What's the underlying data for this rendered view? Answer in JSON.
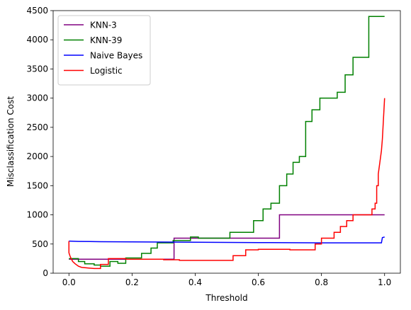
{
  "chart_data": {
    "type": "line",
    "title": "",
    "xlabel": "Threshold",
    "ylabel": "Misclassification Cost",
    "xlim": [
      -0.05,
      1.05
    ],
    "ylim": [
      0,
      4500
    ],
    "xticks": [
      0.0,
      0.2,
      0.4,
      0.6,
      0.8,
      1.0
    ],
    "xtick_labels": [
      "0.0",
      "0.2",
      "0.4",
      "0.6",
      "0.8",
      "1.0"
    ],
    "yticks": [
      0,
      500,
      1000,
      1500,
      2000,
      2500,
      3000,
      3500,
      4000,
      4500
    ],
    "ytick_labels": [
      "0",
      "500",
      "1000",
      "1500",
      "2000",
      "2500",
      "3000",
      "3500",
      "4000",
      "4500"
    ],
    "grid": false,
    "legend_position": "upper-left",
    "series": [
      {
        "name": "KNN-3",
        "color": "#800080",
        "step": true,
        "points": [
          [
            0.0,
            240
          ],
          [
            0.333,
            240
          ],
          [
            0.333,
            600
          ],
          [
            0.667,
            600
          ],
          [
            0.667,
            1000
          ],
          [
            1.0,
            1000
          ]
        ]
      },
      {
        "name": "KNN-39",
        "color": "#008000",
        "step": true,
        "points": [
          [
            0.0,
            250
          ],
          [
            0.03,
            250
          ],
          [
            0.03,
            200
          ],
          [
            0.05,
            200
          ],
          [
            0.05,
            160
          ],
          [
            0.08,
            160
          ],
          [
            0.08,
            140
          ],
          [
            0.1,
            140
          ],
          [
            0.1,
            120
          ],
          [
            0.13,
            120
          ],
          [
            0.13,
            200
          ],
          [
            0.155,
            200
          ],
          [
            0.155,
            170
          ],
          [
            0.18,
            170
          ],
          [
            0.18,
            260
          ],
          [
            0.23,
            260
          ],
          [
            0.23,
            340
          ],
          [
            0.26,
            340
          ],
          [
            0.26,
            430
          ],
          [
            0.28,
            430
          ],
          [
            0.28,
            520
          ],
          [
            0.33,
            520
          ],
          [
            0.33,
            560
          ],
          [
            0.385,
            560
          ],
          [
            0.385,
            620
          ],
          [
            0.41,
            620
          ],
          [
            0.41,
            600
          ],
          [
            0.51,
            600
          ],
          [
            0.51,
            700
          ],
          [
            0.585,
            700
          ],
          [
            0.585,
            900
          ],
          [
            0.615,
            900
          ],
          [
            0.615,
            1100
          ],
          [
            0.64,
            1100
          ],
          [
            0.64,
            1200
          ],
          [
            0.667,
            1200
          ],
          [
            0.667,
            1500
          ],
          [
            0.69,
            1500
          ],
          [
            0.69,
            1700
          ],
          [
            0.71,
            1700
          ],
          [
            0.71,
            1900
          ],
          [
            0.73,
            1900
          ],
          [
            0.73,
            2000
          ],
          [
            0.75,
            2000
          ],
          [
            0.75,
            2600
          ],
          [
            0.77,
            2600
          ],
          [
            0.77,
            2800
          ],
          [
            0.795,
            2800
          ],
          [
            0.795,
            3000
          ],
          [
            0.85,
            3000
          ],
          [
            0.85,
            3100
          ],
          [
            0.875,
            3100
          ],
          [
            0.875,
            3400
          ],
          [
            0.9,
            3400
          ],
          [
            0.9,
            3700
          ],
          [
            0.95,
            3700
          ],
          [
            0.95,
            4400
          ],
          [
            1.0,
            4400
          ]
        ]
      },
      {
        "name": "Naive Bayes",
        "color": "#0000ff",
        "step": true,
        "points": [
          [
            0.0,
            550
          ],
          [
            0.03,
            545
          ],
          [
            0.1,
            540
          ],
          [
            0.25,
            535
          ],
          [
            0.4,
            530
          ],
          [
            0.6,
            525
          ],
          [
            0.8,
            520
          ],
          [
            0.95,
            520
          ],
          [
            0.99,
            520
          ],
          [
            0.993,
            610
          ],
          [
            1.0,
            620
          ]
        ]
      },
      {
        "name": "Logistic",
        "color": "#ff0000",
        "step": true,
        "points": [
          [
            0.0,
            550
          ],
          [
            0.0,
            350
          ],
          [
            0.003,
            300
          ],
          [
            0.007,
            250
          ],
          [
            0.012,
            200
          ],
          [
            0.02,
            160
          ],
          [
            0.03,
            120
          ],
          [
            0.04,
            100
          ],
          [
            0.06,
            90
          ],
          [
            0.08,
            80
          ],
          [
            0.09,
            80
          ],
          [
            0.1,
            80
          ],
          [
            0.1,
            150
          ],
          [
            0.125,
            150
          ],
          [
            0.125,
            250
          ],
          [
            0.18,
            250
          ],
          [
            0.18,
            240
          ],
          [
            0.3,
            240
          ],
          [
            0.3,
            230
          ],
          [
            0.35,
            230
          ],
          [
            0.35,
            220
          ],
          [
            0.5,
            220
          ],
          [
            0.5,
            220
          ],
          [
            0.52,
            220
          ],
          [
            0.52,
            300
          ],
          [
            0.56,
            300
          ],
          [
            0.56,
            400
          ],
          [
            0.6,
            400
          ],
          [
            0.6,
            410
          ],
          [
            0.7,
            410
          ],
          [
            0.7,
            400
          ],
          [
            0.78,
            400
          ],
          [
            0.78,
            500
          ],
          [
            0.8,
            500
          ],
          [
            0.8,
            600
          ],
          [
            0.84,
            600
          ],
          [
            0.84,
            700
          ],
          [
            0.86,
            700
          ],
          [
            0.86,
            800
          ],
          [
            0.88,
            800
          ],
          [
            0.88,
            900
          ],
          [
            0.9,
            900
          ],
          [
            0.9,
            1000
          ],
          [
            0.96,
            1000
          ],
          [
            0.96,
            1100
          ],
          [
            0.97,
            1100
          ],
          [
            0.97,
            1200
          ],
          [
            0.975,
            1200
          ],
          [
            0.975,
            1500
          ],
          [
            0.98,
            1500
          ],
          [
            0.98,
            1700
          ],
          [
            0.985,
            1900
          ],
          [
            0.99,
            2100
          ],
          [
            0.993,
            2300
          ],
          [
            0.996,
            2600
          ],
          [
            1.0,
            3000
          ]
        ]
      }
    ]
  }
}
